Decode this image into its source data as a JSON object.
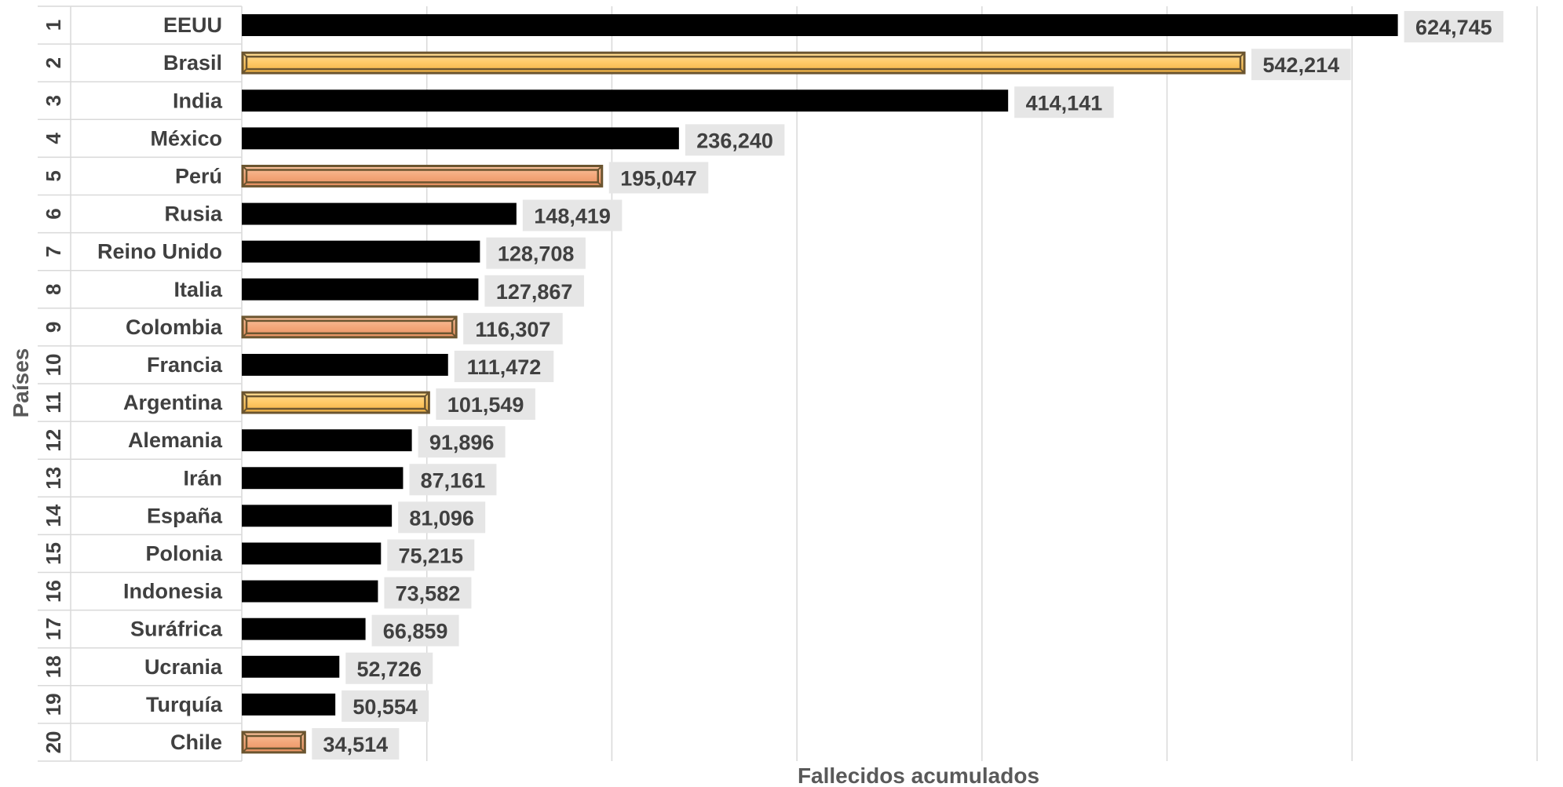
{
  "chart_data": {
    "type": "bar",
    "orientation": "horizontal",
    "xlabel": "Fallecidos  acumulados",
    "ylabel": "Países",
    "xlim": [
      0,
      700000
    ],
    "grid": true,
    "x_tick_labels_visible": false,
    "categories": [
      {
        "rank": "1",
        "country": "EEUU",
        "value": 624745,
        "value_label": "624,745",
        "style": "black"
      },
      {
        "rank": "2",
        "country": "Brasil",
        "value": 542214,
        "value_label": "542,214",
        "style": "gold"
      },
      {
        "rank": "3",
        "country": "India",
        "value": 414141,
        "value_label": "414,141",
        "style": "black"
      },
      {
        "rank": "4",
        "country": "México",
        "value": 236240,
        "value_label": "236,240",
        "style": "black"
      },
      {
        "rank": "5",
        "country": "Perú",
        "value": 195047,
        "value_label": "195,047",
        "style": "peach"
      },
      {
        "rank": "6",
        "country": "Rusia",
        "value": 148419,
        "value_label": "148,419",
        "style": "black"
      },
      {
        "rank": "7",
        "country": "Reino Unido",
        "value": 128708,
        "value_label": "128,708",
        "style": "black"
      },
      {
        "rank": "8",
        "country": "Italia",
        "value": 127867,
        "value_label": "127,867",
        "style": "black"
      },
      {
        "rank": "9",
        "country": "Colombia",
        "value": 116307,
        "value_label": "116,307",
        "style": "peach"
      },
      {
        "rank": "10",
        "country": "Francia",
        "value": 111472,
        "value_label": "111,472",
        "style": "black"
      },
      {
        "rank": "11",
        "country": "Argentina",
        "value": 101549,
        "value_label": "101,549",
        "style": "gold"
      },
      {
        "rank": "12",
        "country": "Alemania",
        "value": 91896,
        "value_label": "91,896",
        "style": "black"
      },
      {
        "rank": "13",
        "country": "Irán",
        "value": 87161,
        "value_label": "87,161",
        "style": "black"
      },
      {
        "rank": "14",
        "country": "España",
        "value": 81096,
        "value_label": "81,096",
        "style": "black"
      },
      {
        "rank": "15",
        "country": "Polonia",
        "value": 75215,
        "value_label": "75,215",
        "style": "black"
      },
      {
        "rank": "16",
        "country": "Indonesia",
        "value": 73582,
        "value_label": "73,582",
        "style": "black"
      },
      {
        "rank": "17",
        "country": "Suráfrica",
        "value": 66859,
        "value_label": "66,859",
        "style": "black"
      },
      {
        "rank": "18",
        "country": "Ucrania",
        "value": 52726,
        "value_label": "52,726",
        "style": "black"
      },
      {
        "rank": "19",
        "country": "Turquía",
        "value": 50554,
        "value_label": "50,554",
        "style": "black"
      },
      {
        "rank": "20",
        "country": "Chile",
        "value": 34514,
        "value_label": "34,514",
        "style": "peach"
      }
    ]
  },
  "colors": {
    "black_bar": "#000000",
    "gold_bar": "#FFC966",
    "peach_bar": "#F4A77A",
    "bevel_dark": "#6B5530",
    "label_box": "#E6E6E6",
    "label_text": "#404040",
    "grid": "#D9D9D9",
    "row_line": "#D9D9D9"
  }
}
